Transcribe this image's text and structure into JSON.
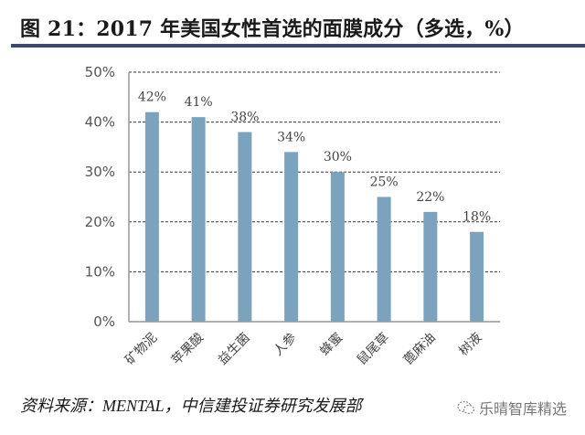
{
  "header": {
    "title": "图 21：2017 年美国女性首选的面膜成分（多选，%）"
  },
  "footer": {
    "source": "资料来源：MENTAL，中信建投证券研究发展部",
    "watermark": "乐晴智库精选",
    "watermark_icon": "wechat-icon"
  },
  "colors": {
    "bar": "#7ba3be",
    "title_rule": "#3b4a6b",
    "grid": "#333333",
    "axis": "#999999"
  },
  "chart_data": {
    "type": "bar",
    "title": "2017 年美国女性首选的面膜成分（多选，%）",
    "xlabel": "",
    "ylabel": "",
    "categories": [
      "矿物泥",
      "苹果酸",
      "益生菌",
      "人参",
      "蜂蜜",
      "鼠尾草",
      "蓖麻油",
      "树液"
    ],
    "values": [
      42,
      41,
      38,
      34,
      30,
      25,
      22,
      18
    ],
    "data_labels": [
      "42%",
      "41%",
      "38%",
      "34%",
      "30%",
      "25%",
      "22%",
      "18%"
    ],
    "yticks": [
      "0%",
      "10%",
      "20%",
      "30%",
      "40%",
      "50%"
    ],
    "ylim": [
      0,
      50
    ],
    "grid": true,
    "grid_style": "dashed horizontal",
    "legend": "none",
    "x_tick_rotation": -45
  }
}
